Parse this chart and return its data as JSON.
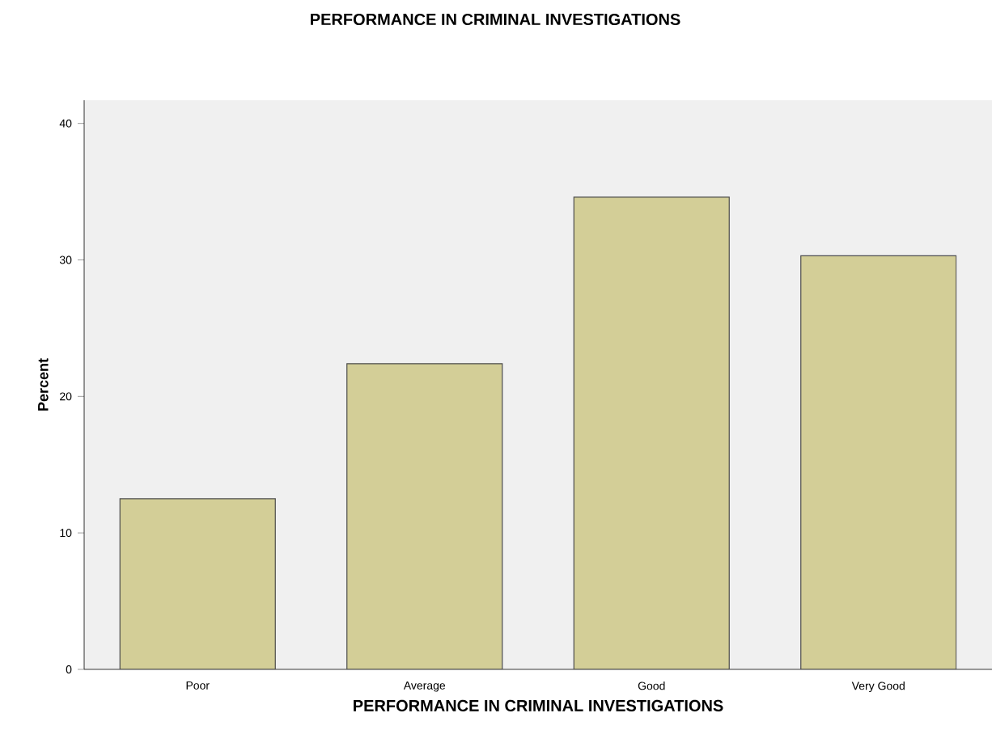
{
  "chart_data": {
    "type": "bar",
    "title": "PERFORMANCE IN CRIMINAL INVESTIGATIONS",
    "xlabel": "PERFORMANCE IN CRIMINAL INVESTIGATIONS",
    "ylabel": "Percent",
    "categories": [
      "Poor",
      "Average",
      "Good",
      "Very Good"
    ],
    "values": [
      12.5,
      22.4,
      34.6,
      30.3
    ],
    "color": "#d3ce97",
    "ylim": [
      0,
      41.7
    ],
    "yticks": [
      0,
      10,
      20,
      30,
      40
    ],
    "grid": false
  }
}
